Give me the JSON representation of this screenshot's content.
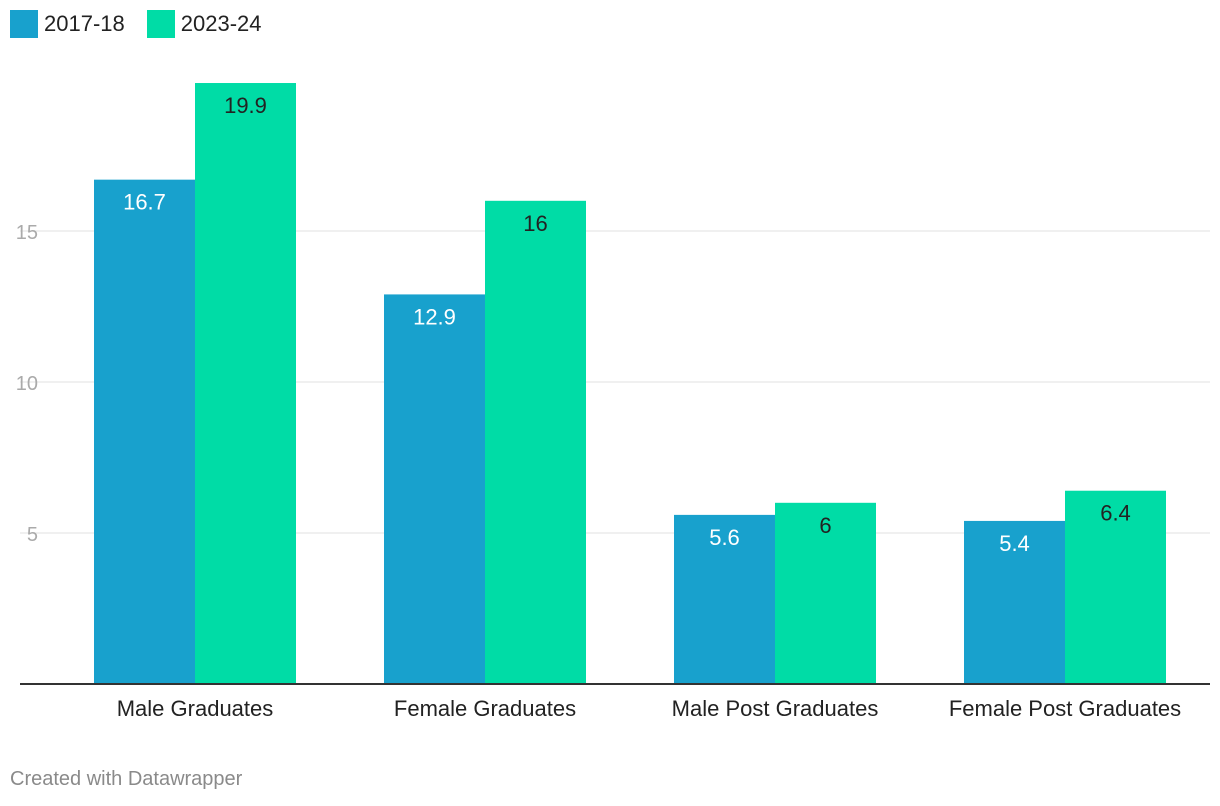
{
  "chart_data": {
    "type": "bar",
    "categories": [
      "Male Graduates",
      "Female Graduates",
      "Male Post Graduates",
      "Female Post Graduates"
    ],
    "series": [
      {
        "name": "2017-18",
        "color": "#18a1cd",
        "values": [
          16.7,
          12.9,
          5.6,
          5.4
        ]
      },
      {
        "name": "2023-24",
        "color": "#00dca6",
        "values": [
          19.9,
          16,
          6,
          6.4
        ]
      }
    ],
    "yticks": [
      5,
      10,
      15
    ],
    "ylim": [
      0,
      20
    ],
    "grid": true,
    "legend_position": "top-left",
    "data_labels": [
      "16.7",
      "12.9",
      "5.6",
      "5.4",
      "19.9",
      "16",
      "6",
      "6.4"
    ]
  },
  "legend": {
    "items": [
      {
        "label": "2017-18",
        "color": "#18a1cd"
      },
      {
        "label": "2023-24",
        "color": "#00dca6"
      }
    ]
  },
  "footer": {
    "text": "Created with Datawrapper"
  }
}
